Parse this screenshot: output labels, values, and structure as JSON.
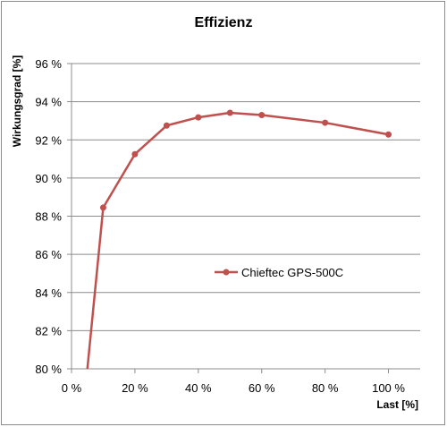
{
  "chart_data": {
    "type": "line",
    "title": "Effizienz",
    "xlabel": "Last [%]",
    "ylabel": "Wirkungsgrad [%]",
    "xlim": [
      0,
      110
    ],
    "ylim": [
      80,
      96
    ],
    "x_ticks": [
      0,
      20,
      40,
      60,
      80,
      100
    ],
    "x_tick_labels": [
      "0 %",
      "20 %",
      "40 %",
      "60 %",
      "80 %",
      "100 %"
    ],
    "y_ticks": [
      80,
      82,
      84,
      86,
      88,
      90,
      92,
      94,
      96
    ],
    "y_tick_labels": [
      "80 %",
      "82 %",
      "84 %",
      "86 %",
      "88 %",
      "90 %",
      "92 %",
      "94 %",
      "96 %"
    ],
    "grid": "horizontal",
    "legend_position": "center-right",
    "series": [
      {
        "name": "Chieftec GPS-500C",
        "color": "#c0504d",
        "x": [
          5,
          10,
          20,
          30,
          40,
          50,
          60,
          80,
          100
        ],
        "y": [
          80.0,
          88.45,
          91.25,
          92.75,
          93.18,
          93.42,
          93.3,
          92.9,
          92.28
        ],
        "markers": [
          false,
          true,
          true,
          true,
          true,
          true,
          true,
          true,
          true
        ]
      }
    ]
  }
}
